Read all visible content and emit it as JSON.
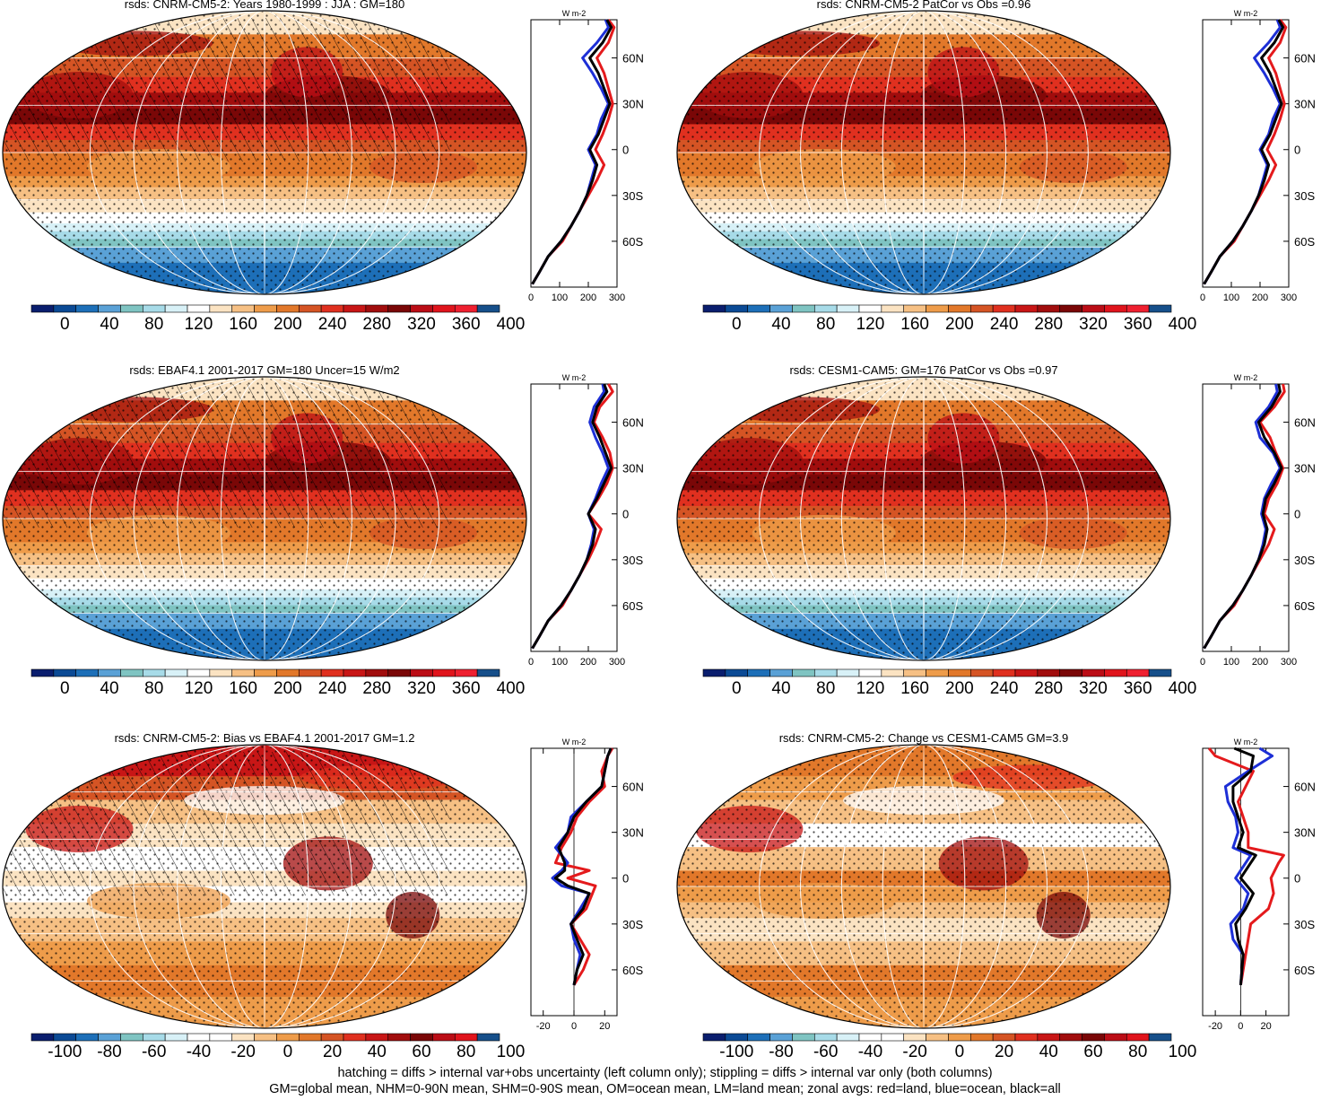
{
  "colors": {
    "abs_scale": [
      "#0a1e6e",
      "#0b4a95",
      "#1d6fb8",
      "#5aa1d6",
      "#7fc4c2",
      "#a7dbe8",
      "#d8f1f7",
      "#ffffff",
      "#fbe3c2",
      "#f6c084",
      "#ee9c4a",
      "#e2782a",
      "#d55424",
      "#e0301f",
      "#c81616",
      "#a10d0d",
      "#7a0707",
      "#bb0d16",
      "#e0141c",
      "#ef2030",
      "#164f8a"
    ],
    "diff_scale": [
      "#0a1e6e",
      "#0b4a95",
      "#1d6fb8",
      "#5aa1d6",
      "#7fc4c2",
      "#a7dbe8",
      "#d8f1f7",
      "#ffffff",
      "#ffffff",
      "#fbe3c2",
      "#f6c084",
      "#ee9c4a",
      "#e2782a",
      "#d55424",
      "#e0301f",
      "#c81616",
      "#a10d0d",
      "#7a0707",
      "#bb0d16",
      "#e0141c",
      "#164f8a"
    ],
    "land": "#e41a1c",
    "ocean": "#1d2fd6",
    "all": "#000000"
  },
  "lat_ticks": [
    "60N",
    "30N",
    "0",
    "30S",
    "60S"
  ],
  "lat_values": [
    60,
    30,
    0,
    -30,
    -60
  ],
  "units": "W m-2",
  "chart_data": [
    {
      "type": "heatmap",
      "title": "rsds: CNRM-CM5-2: Years 1980-1999 : JJA : GM=180",
      "colorbar_ticks": [
        "0",
        "40",
        "80",
        "120",
        "160",
        "200",
        "240",
        "280",
        "320",
        "360",
        "400"
      ],
      "hatching": true,
      "stippling": true,
      "profile": {
        "xticks": [
          "0",
          "100",
          "200",
          "300"
        ],
        "xlim": [
          0,
          300
        ],
        "lat": [
          -88,
          -80,
          -70,
          -60,
          -50,
          -40,
          -30,
          -20,
          -10,
          0,
          10,
          20,
          30,
          40,
          50,
          60,
          70,
          80,
          85
        ],
        "land": [
          5,
          30,
          60,
          110,
          140,
          170,
          200,
          230,
          255,
          225,
          250,
          270,
          285,
          270,
          255,
          230,
          270,
          290,
          270
        ],
        "ocean": [
          5,
          30,
          60,
          105,
          140,
          170,
          195,
          210,
          225,
          200,
          230,
          245,
          270,
          245,
          215,
          180,
          230,
          270,
          260
        ],
        "all": [
          5,
          30,
          60,
          105,
          140,
          170,
          195,
          215,
          230,
          205,
          235,
          255,
          275,
          255,
          235,
          205,
          250,
          280,
          265
        ]
      }
    },
    {
      "type": "heatmap",
      "title": "rsds: CNRM-CM5-2 PatCor vs Obs =0.96",
      "colorbar_ticks": [
        "0",
        "40",
        "80",
        "120",
        "160",
        "200",
        "240",
        "280",
        "320",
        "360",
        "400"
      ],
      "hatching": false,
      "stippling": true,
      "profile": {
        "xticks": [
          "0",
          "100",
          "200",
          "300"
        ],
        "xlim": [
          0,
          300
        ],
        "lat": [
          -88,
          -80,
          -70,
          -60,
          -50,
          -40,
          -30,
          -20,
          -10,
          0,
          10,
          20,
          30,
          40,
          50,
          60,
          70,
          80,
          85
        ],
        "land": [
          5,
          30,
          60,
          110,
          140,
          170,
          200,
          230,
          255,
          225,
          250,
          270,
          285,
          270,
          255,
          230,
          270,
          290,
          270
        ],
        "ocean": [
          5,
          30,
          60,
          105,
          140,
          170,
          195,
          210,
          225,
          200,
          230,
          245,
          270,
          245,
          215,
          180,
          230,
          270,
          260
        ],
        "all": [
          5,
          30,
          60,
          105,
          140,
          170,
          195,
          215,
          230,
          205,
          235,
          255,
          275,
          255,
          235,
          205,
          250,
          280,
          265
        ]
      }
    },
    {
      "type": "heatmap",
      "title": "rsds: EBAF4.1 2001-2017 GM=180 Uncer=15 W/m2",
      "colorbar_ticks": [
        "0",
        "40",
        "80",
        "120",
        "160",
        "200",
        "240",
        "280",
        "320",
        "360",
        "400"
      ],
      "hatching": true,
      "stippling": true,
      "profile": {
        "xticks": [
          "0",
          "100",
          "200",
          "300"
        ],
        "xlim": [
          0,
          300
        ],
        "lat": [
          -88,
          -80,
          -70,
          -60,
          -50,
          -40,
          -30,
          -20,
          -10,
          0,
          10,
          20,
          30,
          40,
          50,
          60,
          70,
          80,
          85
        ],
        "land": [
          5,
          30,
          60,
          110,
          140,
          170,
          200,
          225,
          245,
          200,
          235,
          265,
          285,
          275,
          250,
          220,
          240,
          285,
          270
        ],
        "ocean": [
          5,
          30,
          60,
          105,
          140,
          170,
          195,
          210,
          220,
          200,
          225,
          245,
          270,
          250,
          225,
          205,
          220,
          255,
          250
        ],
        "all": [
          5,
          30,
          60,
          105,
          140,
          170,
          195,
          215,
          225,
          200,
          230,
          255,
          280,
          260,
          240,
          215,
          230,
          265,
          255
        ]
      }
    },
    {
      "type": "heatmap",
      "title": "rsds: CESM1-CAM5: GM=176 PatCor vs Obs =0.97",
      "colorbar_ticks": [
        "0",
        "40",
        "80",
        "120",
        "160",
        "200",
        "240",
        "280",
        "320",
        "360",
        "400"
      ],
      "hatching": false,
      "stippling": true,
      "profile": {
        "xticks": [
          "0",
          "100",
          "200",
          "300"
        ],
        "xlim": [
          0,
          300
        ],
        "lat": [
          -88,
          -80,
          -70,
          -60,
          -50,
          -40,
          -30,
          -20,
          -10,
          0,
          10,
          20,
          30,
          40,
          50,
          60,
          70,
          80,
          85
        ],
        "land": [
          5,
          30,
          60,
          110,
          140,
          170,
          200,
          230,
          250,
          215,
          230,
          260,
          280,
          255,
          235,
          200,
          250,
          285,
          280
        ],
        "ocean": [
          5,
          30,
          60,
          105,
          140,
          170,
          195,
          210,
          220,
          205,
          215,
          240,
          270,
          245,
          200,
          185,
          230,
          260,
          255
        ],
        "all": [
          5,
          30,
          60,
          105,
          140,
          170,
          195,
          215,
          225,
          210,
          220,
          250,
          275,
          250,
          215,
          195,
          240,
          270,
          265
        ]
      }
    },
    {
      "type": "heatmap",
      "title": "rsds: CNRM-CM5-2: Bias vs EBAF4.1 2001-2017 GM=1.2",
      "colorbar_ticks": [
        "-100",
        "-80",
        "-60",
        "-40",
        "-20",
        "0",
        "20",
        "40",
        "60",
        "80",
        "100"
      ],
      "hatching": true,
      "stippling": true,
      "profile": {
        "xticks": [
          "-20",
          "0",
          "20"
        ],
        "xlim": [
          -28,
          28
        ],
        "lat": [
          -70,
          -60,
          -50,
          -40,
          -30,
          -20,
          -10,
          -5,
          0,
          5,
          10,
          20,
          30,
          40,
          50,
          60,
          70,
          80,
          85
        ],
        "land": [
          0,
          6,
          10,
          4,
          -2,
          8,
          12,
          14,
          -4,
          10,
          -12,
          -8,
          -2,
          2,
          10,
          20,
          18,
          22,
          25
        ],
        "ocean": [
          0,
          2,
          4,
          0,
          -2,
          4,
          10,
          -8,
          -14,
          -8,
          -4,
          -12,
          -4,
          -2,
          8,
          18,
          20,
          22,
          24
        ],
        "all": [
          0,
          2,
          6,
          2,
          -2,
          6,
          10,
          -4,
          -12,
          -6,
          -6,
          -10,
          -4,
          0,
          8,
          18,
          20,
          22,
          24
        ]
      }
    },
    {
      "type": "heatmap",
      "title": "rsds: CNRM-CM5-2: Change vs CESM1-CAM5 GM=3.9",
      "colorbar_ticks": [
        "-100",
        "-80",
        "-60",
        "-40",
        "-20",
        "0",
        "20",
        "40",
        "60",
        "80",
        "100"
      ],
      "hatching": false,
      "stippling": true,
      "profile": {
        "xticks": [
          "-20",
          "0",
          "20"
        ],
        "xlim": [
          -30,
          38
        ],
        "lat": [
          -70,
          -60,
          -50,
          -40,
          -30,
          -20,
          -10,
          0,
          10,
          15,
          20,
          30,
          40,
          50,
          60,
          70,
          80,
          85
        ],
        "land": [
          0,
          2,
          4,
          6,
          8,
          22,
          26,
          24,
          30,
          34,
          6,
          6,
          2,
          -2,
          4,
          10,
          -20,
          -25
        ],
        "ocean": [
          0,
          1,
          2,
          -6,
          -8,
          2,
          6,
          -4,
          4,
          8,
          -6,
          -2,
          -4,
          -10,
          -12,
          6,
          25,
          15
        ],
        "all": [
          0,
          1,
          2,
          -2,
          -4,
          4,
          10,
          0,
          8,
          12,
          -2,
          2,
          -2,
          -6,
          -6,
          8,
          10,
          -5
        ]
      }
    }
  ],
  "footer": {
    "line1": "hatching = diffs > internal var+obs uncertainty (left column only); stippling = diffs > internal var only (both columns)",
    "line2": "GM=global mean, NHM=0-90N mean, SHM=0-90S mean, OM=ocean mean, LM=land mean; zonal avgs: red=land, blue=ocean, black=all"
  }
}
